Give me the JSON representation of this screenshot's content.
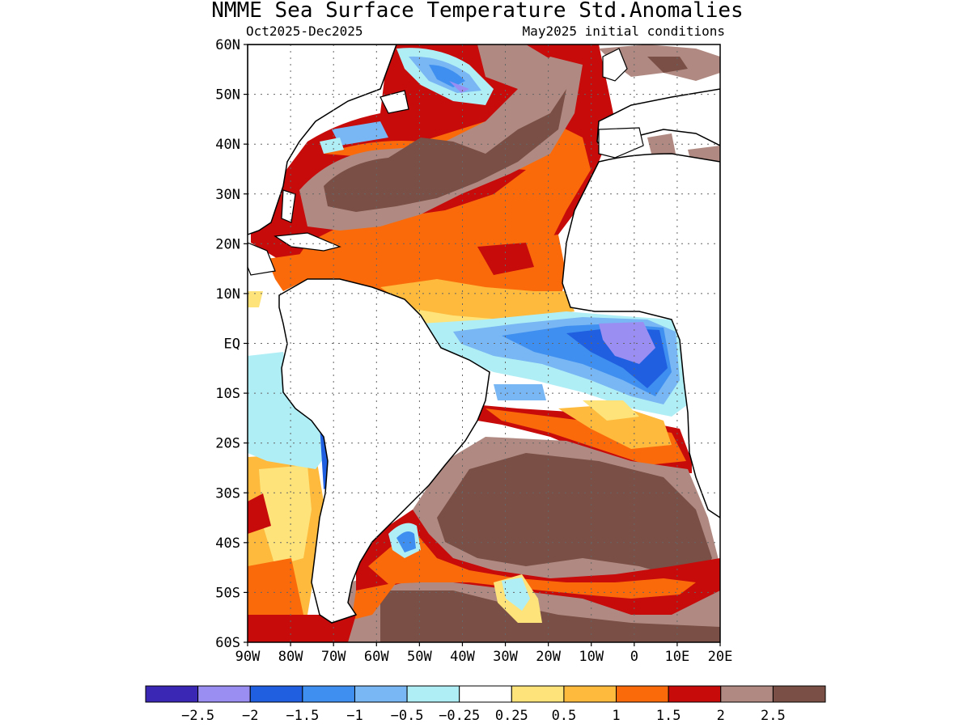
{
  "title": "NMME Sea Surface Temperature Std.Anomalies",
  "subtitle_left": "Oct2025-Dec2025",
  "subtitle_right": "May2025 initial conditions",
  "lat_labels": [
    "60N",
    "50N",
    "40N",
    "30N",
    "20N",
    "10N",
    "EQ",
    "10S",
    "20S",
    "30S",
    "40S",
    "50S",
    "60S"
  ],
  "lon_labels": [
    "90W",
    "80W",
    "70W",
    "60W",
    "50W",
    "40W",
    "30W",
    "20W",
    "10W",
    "0",
    "10E",
    "20E"
  ],
  "colorbar": {
    "colors": [
      "#3a27b4",
      "#9b8ef3",
      "#1f5fe0",
      "#3f8ff0",
      "#78b6f4",
      "#b0eef6",
      "#ffffff",
      "#fde37a",
      "#fdba3c",
      "#fa6a0a",
      "#c70a0a",
      "#b08a82",
      "#7a4f45"
    ],
    "labels": [
      "-2.5",
      "-2",
      "-1.5",
      "-1",
      "-0.5",
      "-0.25",
      "0.25",
      "0.5",
      "1",
      "1.5",
      "2",
      "2.5"
    ]
  },
  "map_colors": {
    "brown_dark": "#7a4f45",
    "brown_light": "#b08a82",
    "red": "#c70a0a",
    "orange": "#fa6a0a",
    "light_orange": "#fdba3c",
    "yellow": "#fde37a",
    "cyan": "#b0eef6",
    "light_blue": "#78b6f4",
    "blue": "#3f8ff0",
    "deep_blue": "#1f5fe0",
    "purple": "#9b8ef3"
  }
}
